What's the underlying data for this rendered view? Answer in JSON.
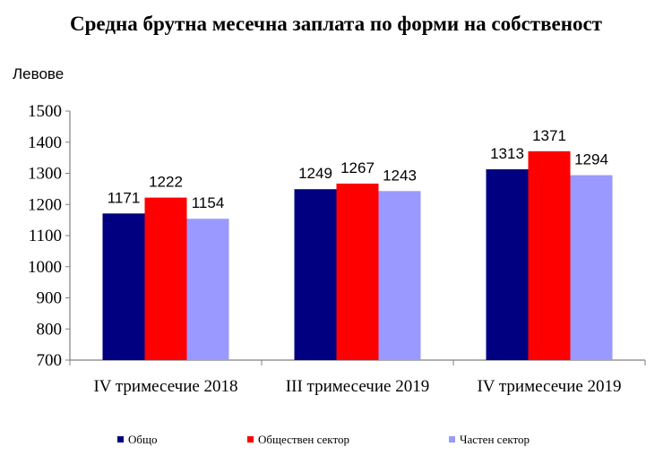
{
  "chart_data": {
    "type": "bar",
    "title": "Средна брутна месечна заплата по форми на собственост",
    "ylabel": "Левове",
    "xlabel": "",
    "ylim": [
      700,
      1500
    ],
    "yticks": [
      700,
      800,
      900,
      1000,
      1100,
      1200,
      1300,
      1400,
      1500
    ],
    "categories": [
      "IV тримесечие 2018",
      "III тримесечие 2019",
      "IV тримесечие 2019"
    ],
    "series": [
      {
        "name": "Общо",
        "color": "#000080",
        "values": [
          1171,
          1249,
          1313
        ]
      },
      {
        "name": "Обществен сектор",
        "color": "#ff0000",
        "values": [
          1222,
          1267,
          1371
        ]
      },
      {
        "name": "Частен сектор",
        "color": "#9999ff",
        "values": [
          1154,
          1243,
          1294
        ]
      }
    ],
    "grid": false,
    "legend_position": "bottom"
  }
}
